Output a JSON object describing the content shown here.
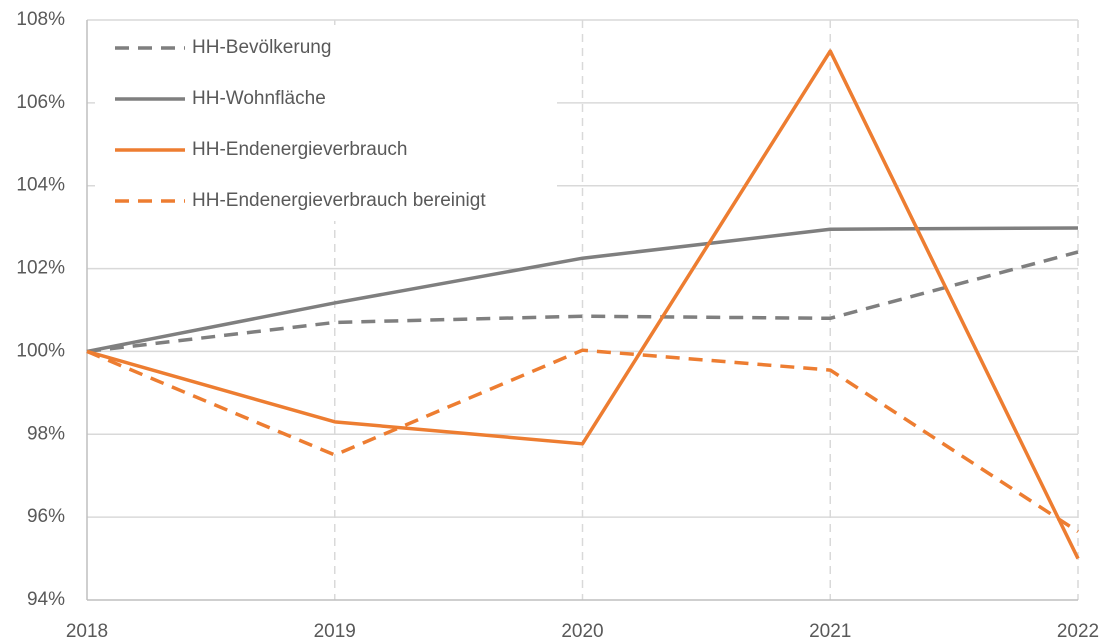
{
  "chart_data": {
    "type": "line",
    "x": [
      2018,
      2019,
      2020,
      2021,
      2022
    ],
    "xlim": [
      2018,
      2022
    ],
    "xticks": [
      2018,
      2019,
      2020,
      2021,
      2022
    ],
    "ylim": [
      94,
      108
    ],
    "yticks": [
      {
        "value": 94,
        "label": "94%"
      },
      {
        "value": 96,
        "label": "96%"
      },
      {
        "value": 98,
        "label": "98%"
      },
      {
        "value": 100,
        "label": "100%"
      },
      {
        "value": 102,
        "label": "102%"
      },
      {
        "value": 104,
        "label": "104%"
      },
      {
        "value": 106,
        "label": "106%"
      },
      {
        "value": 108,
        "label": "108%"
      }
    ],
    "grid": true,
    "legend": "upper left",
    "series": [
      {
        "name": "HH-Bevölkerung",
        "color": "#7f7f7f",
        "dashed": true,
        "values": [
          100,
          100.7,
          100.85,
          100.8,
          102.4
        ]
      },
      {
        "name": "HH-Wohnfläche",
        "color": "#7f7f7f",
        "dashed": false,
        "values": [
          100,
          101.17,
          102.25,
          102.95,
          102.98
        ]
      },
      {
        "name": "HH-Endenergieverbrauch",
        "color": "#ed7d31",
        "dashed": false,
        "values": [
          100,
          98.3,
          97.77,
          107.25,
          95.0
        ]
      },
      {
        "name": "HH-Endenergieverbrauch bereinigt",
        "color": "#ed7d31",
        "dashed": true,
        "values": [
          100,
          97.5,
          100.03,
          99.55,
          95.65
        ]
      }
    ]
  }
}
